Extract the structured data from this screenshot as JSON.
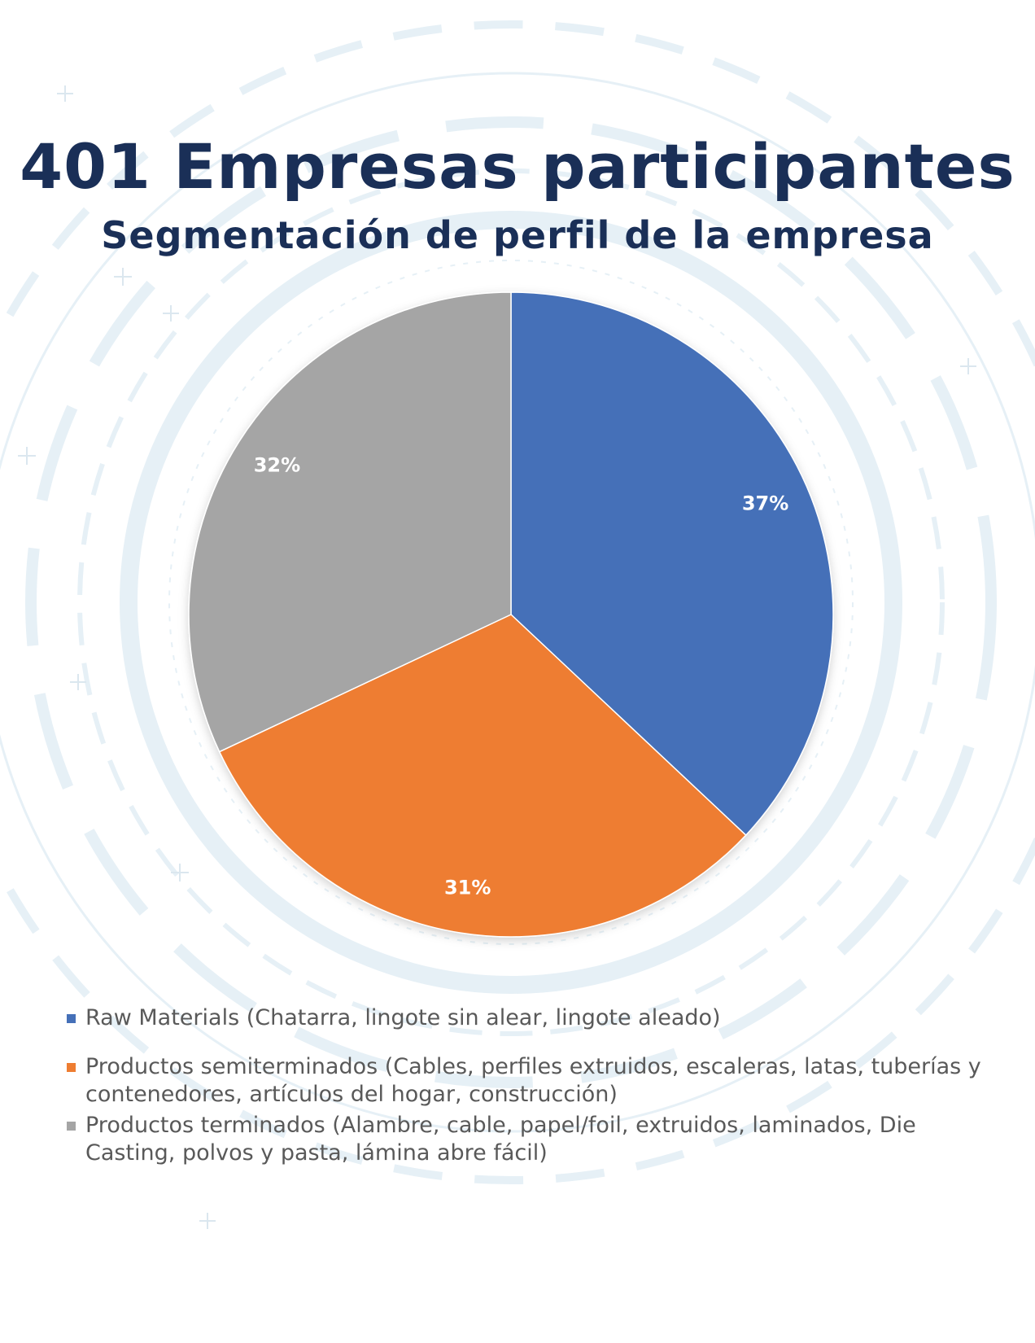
{
  "header": {
    "title": "401 Empresas participantes",
    "subtitle": "Segmentación de perfil de la empresa"
  },
  "colors": {
    "title": "#1a2f57",
    "raw_materials": "#4570b8",
    "semiterminados": "#ee7d31",
    "terminados": "#a5a5a5",
    "background_accent": "#e3eff5"
  },
  "chart_data": {
    "type": "pie",
    "title": "Segmentación de perfil de la empresa",
    "start_angle_deg": 0,
    "direction": "clockwise",
    "legend_position": "bottom",
    "slices": [
      {
        "label": "Raw Materials (Chatarra, lingote sin alear, lingote aleado)",
        "value": 37,
        "display": "37%",
        "color": "#4570b8"
      },
      {
        "label": "Productos semiterminados (Cables, perfiles extruidos, escaleras, latas, tuberías y contenedores, artículos del hogar, construcción)",
        "value": 31,
        "display": "31%",
        "color": "#ee7d31"
      },
      {
        "label": "Productos terminados (Alambre, cable, papel/foil, extruidos, laminados, Die Casting, polvos y pasta, lámina abre fácil)",
        "value": 32,
        "display": "32%",
        "color": "#a5a5a5"
      }
    ]
  }
}
